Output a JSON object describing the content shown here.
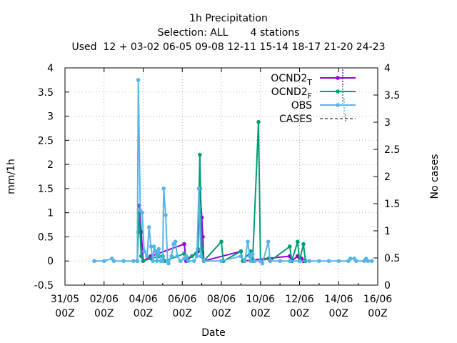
{
  "chart_data": {
    "type": "line",
    "title": "1h Precipitation",
    "subtitle": "Selection: ALL       4 stations",
    "subtitle2": "Used  12 + 03-02 06-05 09-08 12-11 15-14 18-17 21-20 24-23",
    "xlabel": "Date",
    "ylabel": "mm/1h",
    "y2label": "No cases",
    "ylim": [
      -0.5,
      4
    ],
    "y2lim": [
      0,
      4
    ],
    "xlim": [
      "31/05 00Z",
      "16/06 00Z"
    ],
    "grid": true,
    "legend_position": "top-right",
    "y_ticks": [
      "-0.5",
      "0",
      "0.5",
      "1",
      "1.5",
      "2",
      "2.5",
      "3",
      "3.5",
      "4"
    ],
    "y2_ticks": [
      "0",
      "0.5",
      "1",
      "1.5",
      "2",
      "2.5",
      "3",
      "3.5",
      "4"
    ],
    "x_ticks": [
      {
        "line1": "31/05",
        "line2": "00Z"
      },
      {
        "line1": "02/06",
        "line2": "00Z"
      },
      {
        "line1": "04/06",
        "line2": "00Z"
      },
      {
        "line1": "06/06",
        "line2": "00Z"
      },
      {
        "line1": "08/06",
        "line2": "00Z"
      },
      {
        "line1": "10/06",
        "line2": "00Z"
      },
      {
        "line1": "12/06",
        "line2": "00Z"
      },
      {
        "line1": "14/06",
        "line2": "00Z"
      },
      {
        "line1": "16/06",
        "line2": "00Z"
      }
    ],
    "series": [
      {
        "name": "OCND2",
        "name_sub": "T",
        "color": "#9400d3",
        "points": [
          [
            3.8,
            1.15
          ],
          [
            3.9,
            0.6
          ],
          [
            4.0,
            0.0
          ],
          [
            4.4,
            0.1
          ],
          [
            6.1,
            0.35
          ],
          [
            6.2,
            0.0
          ],
          [
            6.8,
            0.2
          ],
          [
            6.9,
            1.5
          ],
          [
            7.0,
            0.9
          ],
          [
            7.05,
            0.5
          ],
          [
            7.1,
            0.0
          ],
          [
            9.0,
            0.2
          ],
          [
            9.1,
            0.0
          ],
          [
            11.5,
            0.1
          ],
          [
            11.6,
            0.0
          ],
          [
            11.9,
            0.1
          ],
          [
            12.0,
            0.0
          ],
          [
            12.1,
            0.05
          ],
          [
            12.2,
            0.0
          ]
        ]
      },
      {
        "name": "OCND2",
        "name_sub": "F",
        "color": "#009e73",
        "points": [
          [
            3.7,
            0.0
          ],
          [
            3.75,
            0.6
          ],
          [
            3.8,
            1.0
          ],
          [
            3.9,
            0.1
          ],
          [
            4.0,
            0.0
          ],
          [
            4.4,
            0.05
          ],
          [
            4.8,
            0.1
          ],
          [
            5.0,
            0.1
          ],
          [
            5.1,
            0.0
          ],
          [
            6.1,
            0.15
          ],
          [
            6.2,
            0.05
          ],
          [
            6.5,
            0.1
          ],
          [
            6.7,
            0.15
          ],
          [
            6.8,
            0.25
          ],
          [
            6.9,
            2.2
          ],
          [
            7.0,
            0.25
          ],
          [
            7.1,
            0.0
          ],
          [
            8.0,
            0.4
          ],
          [
            8.1,
            0.0
          ],
          [
            9.0,
            0.2
          ],
          [
            9.1,
            0.0
          ],
          [
            9.5,
            0.2
          ],
          [
            9.6,
            0.0
          ],
          [
            9.9,
            2.88
          ],
          [
            10.0,
            0.0
          ],
          [
            10.4,
            0.05
          ],
          [
            10.5,
            0.0
          ],
          [
            11.5,
            0.3
          ],
          [
            11.6,
            0.0
          ],
          [
            11.9,
            0.4
          ],
          [
            12.0,
            0.0
          ],
          [
            12.2,
            0.35
          ],
          [
            12.3,
            0.0
          ]
        ]
      },
      {
        "name": "OBS",
        "color": "#56b4e9",
        "points": [
          [
            1.5,
            0.0
          ],
          [
            2.0,
            0.0
          ],
          [
            2.4,
            0.05
          ],
          [
            2.5,
            0.0
          ],
          [
            3.0,
            0.0
          ],
          [
            3.5,
            0.0
          ],
          [
            3.7,
            0.0
          ],
          [
            3.75,
            3.75
          ],
          [
            3.85,
            1.05
          ],
          [
            3.95,
            1.0
          ],
          [
            4.05,
            0.2
          ],
          [
            4.2,
            0.1
          ],
          [
            4.3,
            0.7
          ],
          [
            4.4,
            0.3
          ],
          [
            4.5,
            0.0
          ],
          [
            4.55,
            0.3
          ],
          [
            4.65,
            0.2
          ],
          [
            4.7,
            0.0
          ],
          [
            4.8,
            0.25
          ],
          [
            4.9,
            0.0
          ],
          [
            5.0,
            0.0
          ],
          [
            5.05,
            1.5
          ],
          [
            5.15,
            0.95
          ],
          [
            5.25,
            0.0
          ],
          [
            5.3,
            -0.05
          ],
          [
            5.45,
            0.1
          ],
          [
            5.55,
            0.35
          ],
          [
            5.65,
            0.4
          ],
          [
            5.75,
            0.1
          ],
          [
            5.9,
            0.0
          ],
          [
            6.1,
            0.05
          ],
          [
            6.2,
            0.1
          ],
          [
            6.3,
            0.0
          ],
          [
            6.6,
            0.0
          ],
          [
            6.75,
            0.1
          ],
          [
            6.85,
            1.5
          ],
          [
            6.95,
            0.1
          ],
          [
            7.1,
            0.0
          ],
          [
            8.0,
            0.0
          ],
          [
            9.0,
            0.1
          ],
          [
            9.2,
            0.0
          ],
          [
            9.35,
            0.4
          ],
          [
            9.45,
            0.1
          ],
          [
            9.5,
            0.0
          ],
          [
            9.6,
            0.15
          ],
          [
            9.7,
            0.0
          ],
          [
            10.0,
            0.0
          ],
          [
            10.1,
            -0.05
          ],
          [
            10.4,
            0.4
          ],
          [
            10.5,
            0.0
          ],
          [
            11.0,
            0.0
          ],
          [
            11.5,
            0.0
          ],
          [
            12.0,
            0.0
          ],
          [
            12.5,
            0.0
          ],
          [
            13.0,
            0.0
          ],
          [
            13.5,
            0.0
          ],
          [
            14.0,
            0.0
          ],
          [
            14.5,
            0.0
          ],
          [
            14.6,
            0.05
          ],
          [
            14.8,
            0.05
          ],
          [
            14.9,
            0.0
          ],
          [
            15.3,
            0.0
          ],
          [
            15.4,
            0.05
          ],
          [
            15.5,
            0.0
          ],
          [
            15.7,
            0.0
          ]
        ]
      },
      {
        "name": "CASES",
        "color": "#808080",
        "points": []
      }
    ]
  }
}
